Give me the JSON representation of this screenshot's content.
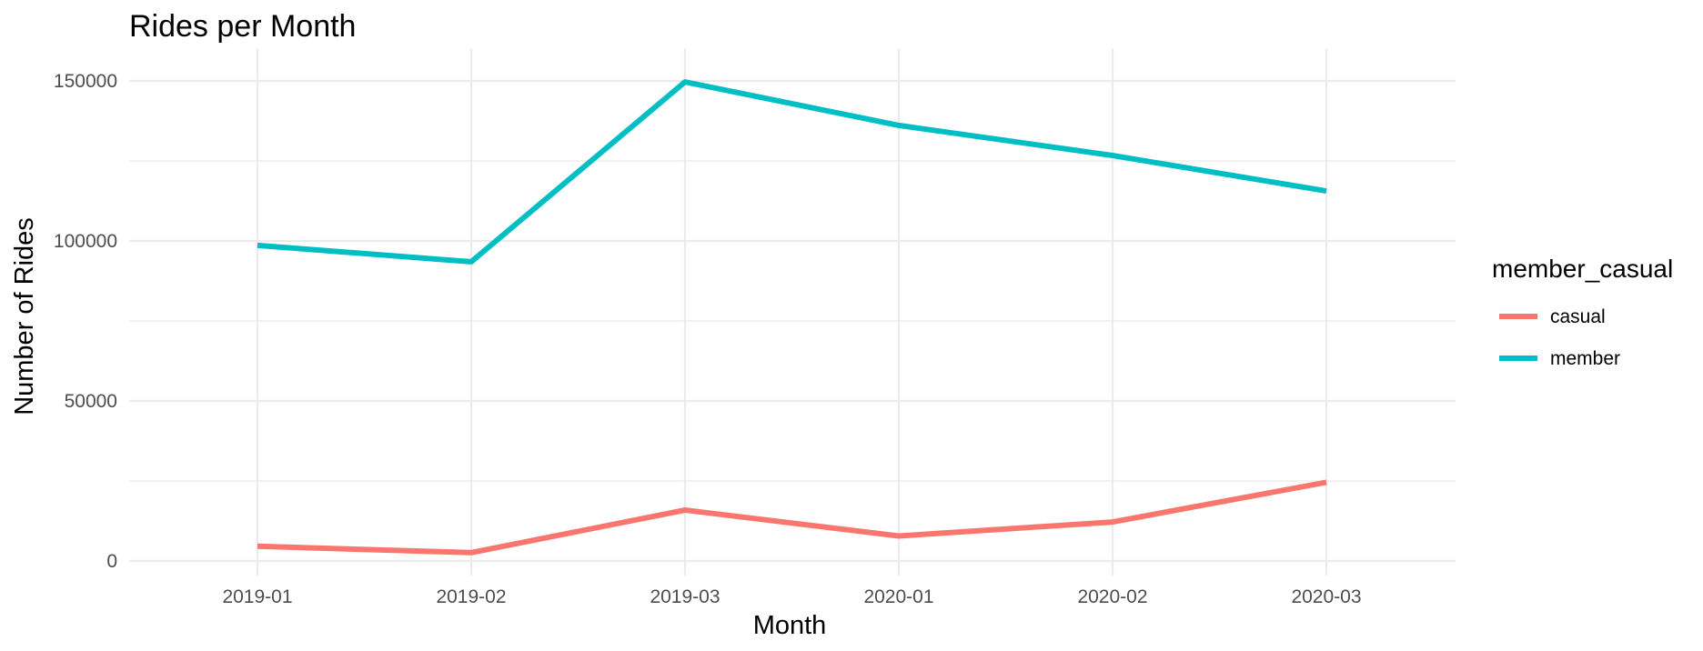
{
  "chart_data": {
    "type": "line",
    "title": "Rides per Month",
    "xlabel": "Month",
    "ylabel": "Number of Rides",
    "categories": [
      "2019-01",
      "2019-02",
      "2019-03",
      "2020-01",
      "2020-02",
      "2020-03"
    ],
    "ylim": [
      0,
      160000
    ],
    "yticks": [
      0,
      50000,
      100000,
      150000
    ],
    "ytick_labels": [
      "0",
      "50000",
      "100000",
      "150000"
    ],
    "grid": true,
    "legend": {
      "title": "member_casual",
      "position": "right"
    },
    "series": [
      {
        "name": "casual",
        "color": "#F8766D",
        "values": [
          4600,
          2600,
          15900,
          7800,
          12200,
          24600
        ]
      },
      {
        "name": "member",
        "color": "#00BFC4",
        "values": [
          98600,
          93500,
          149700,
          136100,
          126700,
          115600
        ]
      }
    ]
  }
}
